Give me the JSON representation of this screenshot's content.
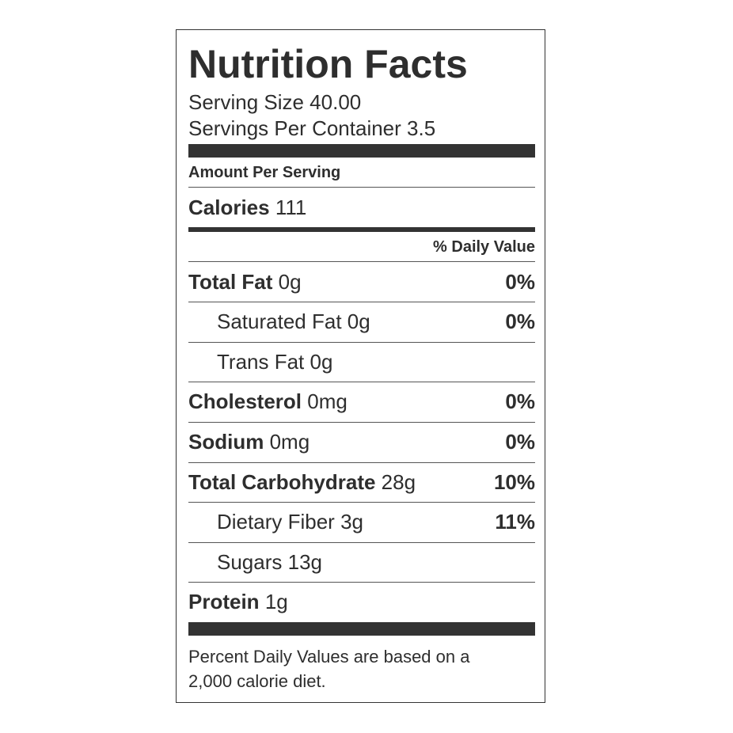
{
  "header": {
    "title": "Nutrition Facts",
    "serving_size": "Serving Size 40.00",
    "servings_per_container": "Servings Per Container 3.5"
  },
  "amount_per_serving": "Amount Per Serving",
  "calories": {
    "label": "Calories",
    "value": "111"
  },
  "daily_value_heading": "% Daily Value",
  "nutrients": [
    {
      "label": "Total Fat",
      "amount": "0g",
      "dv": "0%",
      "sub": [
        {
          "label": "Saturated Fat",
          "amount": "0g",
          "dv": "0%"
        },
        {
          "label": "Trans Fat",
          "amount": "0g"
        }
      ]
    },
    {
      "label": "Cholesterol",
      "amount": "0mg",
      "dv": "0%"
    },
    {
      "label": "Sodium",
      "amount": "0mg",
      "dv": "0%"
    },
    {
      "label": "Total Carbohydrate",
      "amount": "28g",
      "dv": "10%",
      "sub": [
        {
          "label": "Dietary Fiber",
          "amount": "3g",
          "dv": "11%"
        },
        {
          "label": "Sugars",
          "amount": "13g"
        }
      ]
    },
    {
      "label": "Protein",
      "amount": "1g"
    }
  ],
  "footnote": "Percent Daily Values are based on a 2,000 calorie diet."
}
